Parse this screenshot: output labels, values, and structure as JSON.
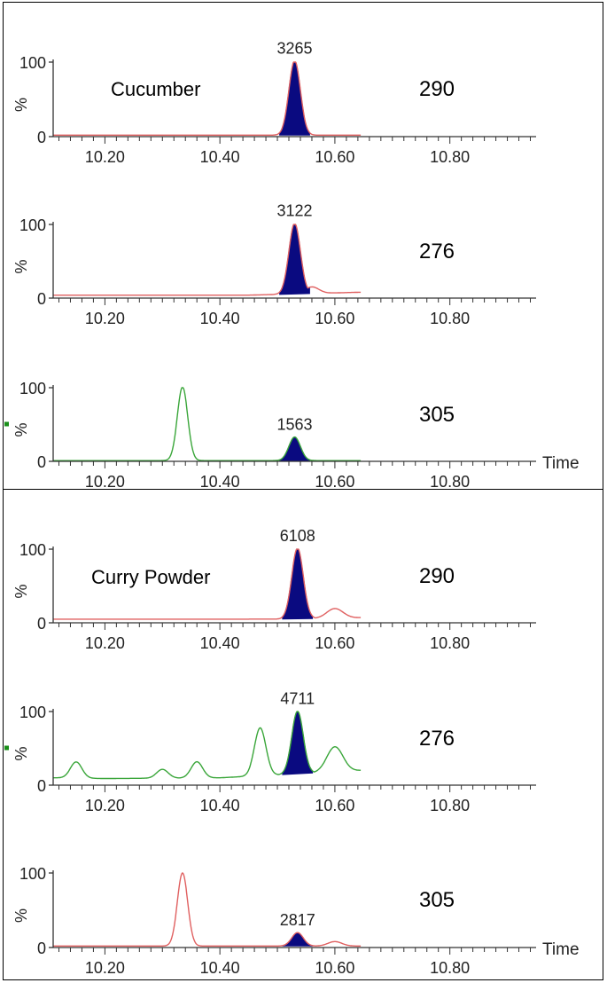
{
  "chart_data": [
    {
      "type": "line",
      "sample": "Cucumber",
      "mz": "290",
      "peak_label": "3265",
      "color": "#e06060",
      "peak_fill": "#0a0a80",
      "xlabel": "",
      "x_ticks": [
        "10.20",
        "10.40",
        "10.60",
        "10.80"
      ],
      "y_ticks": [
        "100",
        "0"
      ],
      "ylabel": "%",
      "xlim": [
        10.11,
        10.95
      ],
      "ylim": [
        0,
        100
      ],
      "trace_range": [
        10.11,
        10.645
      ],
      "baseline": [
        [
          10.11,
          2
        ],
        [
          10.3,
          2
        ],
        [
          10.5,
          2
        ],
        [
          10.645,
          2
        ]
      ],
      "peaks": [
        {
          "rt": 10.53,
          "height": 100,
          "width": 0.01,
          "filled": true
        }
      ]
    },
    {
      "type": "line",
      "sample": "",
      "mz": "276",
      "peak_label": "3122",
      "color": "#e06060",
      "peak_fill": "#0a0a80",
      "xlabel": "",
      "x_ticks": [
        "10.20",
        "10.40",
        "10.60",
        "10.80"
      ],
      "y_ticks": [
        "100",
        "0"
      ],
      "ylabel": "%",
      "xlim": [
        10.11,
        10.95
      ],
      "ylim": [
        0,
        100
      ],
      "trace_range": [
        10.11,
        10.645
      ],
      "baseline": [
        [
          10.11,
          4
        ],
        [
          10.3,
          4
        ],
        [
          10.45,
          4
        ],
        [
          10.5,
          5
        ],
        [
          10.645,
          8
        ]
      ],
      "peaks": [
        {
          "rt": 10.53,
          "height": 96,
          "width": 0.01,
          "filled": true
        },
        {
          "rt": 10.56,
          "height": 9,
          "width": 0.012,
          "filled": false
        }
      ]
    },
    {
      "type": "line",
      "sample": "",
      "mz": "305",
      "peak_label": "1563",
      "color": "#3aa63a",
      "peak_fill": "#0a0a80",
      "xlabel": "Time",
      "x_ticks": [
        "10.20",
        "10.40",
        "10.60",
        "10.80"
      ],
      "y_ticks": [
        "100",
        "0"
      ],
      "ylabel": "%",
      "xlim": [
        10.11,
        10.95
      ],
      "ylim": [
        0,
        100
      ],
      "trace_range": [
        10.11,
        10.645
      ],
      "baseline": [
        [
          10.11,
          1
        ],
        [
          10.645,
          1
        ]
      ],
      "peaks": [
        {
          "rt": 10.335,
          "height": 100,
          "width": 0.009,
          "filled": false
        },
        {
          "rt": 10.53,
          "height": 32,
          "width": 0.01,
          "filled": true
        }
      ]
    },
    {
      "type": "line",
      "sample": "Curry Powder",
      "mz": "290",
      "peak_label": "6108",
      "color": "#e06060",
      "peak_fill": "#0a0a80",
      "xlabel": "",
      "x_ticks": [
        "10.20",
        "10.40",
        "10.60",
        "10.80"
      ],
      "y_ticks": [
        "100",
        "0"
      ],
      "ylabel": "%",
      "xlim": [
        10.11,
        10.95
      ],
      "ylim": [
        0,
        100
      ],
      "trace_range": [
        10.11,
        10.645
      ],
      "baseline": [
        [
          10.11,
          5
        ],
        [
          10.3,
          5
        ],
        [
          10.5,
          5
        ],
        [
          10.645,
          7
        ]
      ],
      "peaks": [
        {
          "rt": 10.535,
          "height": 96,
          "width": 0.01,
          "filled": true
        },
        {
          "rt": 10.6,
          "height": 13,
          "width": 0.014,
          "filled": false
        }
      ]
    },
    {
      "type": "line",
      "sample": "",
      "mz": "276",
      "peak_label": "4711",
      "color": "#3aa63a",
      "peak_fill": "#0a0a80",
      "xlabel": "",
      "x_ticks": [
        "10.20",
        "10.40",
        "10.60",
        "10.80"
      ],
      "y_ticks": [
        "100",
        "0"
      ],
      "ylabel": "%",
      "xlim": [
        10.11,
        10.95
      ],
      "ylim": [
        0,
        100
      ],
      "trace_range": [
        10.11,
        10.645
      ],
      "baseline": [
        [
          10.11,
          10
        ],
        [
          10.2,
          9
        ],
        [
          10.4,
          10
        ],
        [
          10.5,
          14
        ],
        [
          10.645,
          20
        ]
      ],
      "peaks": [
        {
          "rt": 10.15,
          "height": 22,
          "width": 0.01,
          "filled": false
        },
        {
          "rt": 10.3,
          "height": 12,
          "width": 0.01,
          "filled": false
        },
        {
          "rt": 10.36,
          "height": 22,
          "width": 0.01,
          "filled": false
        },
        {
          "rt": 10.47,
          "height": 65,
          "width": 0.01,
          "filled": false
        },
        {
          "rt": 10.535,
          "height": 85,
          "width": 0.01,
          "filled": true
        },
        {
          "rt": 10.6,
          "height": 34,
          "width": 0.014,
          "filled": false
        }
      ]
    },
    {
      "type": "line",
      "sample": "",
      "mz": "305",
      "peak_label": "2817",
      "color": "#e06060",
      "peak_fill": "#0a0a80",
      "xlabel": "Time",
      "x_ticks": [
        "10.20",
        "10.40",
        "10.60",
        "10.80"
      ],
      "y_ticks": [
        "100",
        "0"
      ],
      "ylabel": "%",
      "xlim": [
        10.11,
        10.95
      ],
      "ylim": [
        0,
        100
      ],
      "trace_range": [
        10.11,
        10.645
      ],
      "baseline": [
        [
          10.11,
          2
        ],
        [
          10.645,
          2
        ]
      ],
      "peaks": [
        {
          "rt": 10.335,
          "height": 98,
          "width": 0.009,
          "filled": false
        },
        {
          "rt": 10.535,
          "height": 18,
          "width": 0.01,
          "filled": true
        },
        {
          "rt": 10.6,
          "height": 6,
          "width": 0.012,
          "filled": false
        }
      ]
    }
  ]
}
